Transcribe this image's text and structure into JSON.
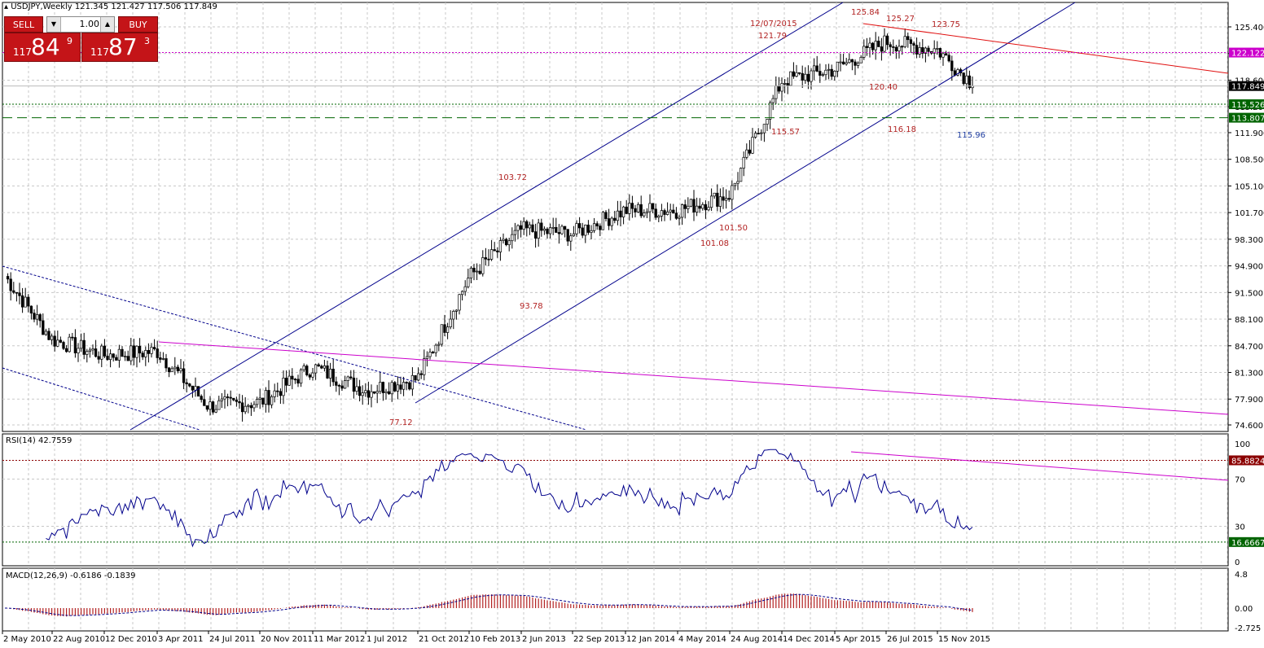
{
  "header": {
    "symbol_line": "USDJPY,Weekly  121.345 121.427 117.506 117.849"
  },
  "trade_panel": {
    "sell_label": "SELL",
    "buy_label": "BUY",
    "lot_value": "1.00",
    "sell_price": {
      "small": "117",
      "big": "84",
      "sup": "9"
    },
    "buy_price": {
      "small": "117",
      "big": "87",
      "sup": "3"
    }
  },
  "colors": {
    "bull": "#ffffff",
    "bear": "#000000",
    "channel": "#00008b",
    "magenta": "#cc00cc",
    "red_line": "#e01010",
    "green_line": "#006400",
    "rsi_line": "#00008b",
    "macd_hist": "#b22222",
    "annot": "#b22222",
    "annot_blue": "#1e3c9e",
    "grid": "#c8c8c8"
  },
  "price_axis": {
    "ticks": [
      "125.400",
      "122.000",
      "118.600",
      "115.200",
      "111.900",
      "108.500",
      "105.100",
      "101.700",
      "98.300",
      "94.900",
      "91.500",
      "88.100",
      "84.700",
      "81.300",
      "77.900",
      "74.600"
    ],
    "markers": [
      {
        "label": "122.122",
        "color": "#cc00cc"
      },
      {
        "label": "117.849",
        "color": "#000000"
      },
      {
        "label": "115.526",
        "color": "#006400"
      },
      {
        "label": "113.807",
        "color": "#006400"
      }
    ]
  },
  "time_axis": [
    "2 May 2010",
    "22 Aug 2010",
    "12 Dec 2010",
    "3 Apr 2011",
    "24 Jul 2011",
    "20 Nov 2011",
    "11 Mar 2012",
    "1 Jul 2012",
    "21 Oct 2012",
    "10 Feb 2013",
    "2 Jun 2013",
    "22 Sep 2013",
    "12 Jan 2014",
    "4 May 2014",
    "24 Aug 2014",
    "14 Dec 2014",
    "5 Apr 2015",
    "26 Jul 2015",
    "15 Nov 2015"
  ],
  "annotations": [
    {
      "text": "125.84"
    },
    {
      "text": "125.27"
    },
    {
      "text": "123.75"
    },
    {
      "text": "12/07/2015"
    },
    {
      "text": "121.79"
    },
    {
      "text": "120.40"
    },
    {
      "text": "115.57"
    },
    {
      "text": "116.18"
    },
    {
      "text": "115.96"
    },
    {
      "text": "103.72"
    },
    {
      "text": "101.50"
    },
    {
      "text": "101.08"
    },
    {
      "text": "93.78"
    },
    {
      "text": "77.12"
    }
  ],
  "rsi": {
    "label": "RSI(14) 42.7559",
    "axis": [
      "100",
      "70",
      "30",
      "0"
    ],
    "upper_level": "85.8824",
    "lower_level": "16.6667"
  },
  "macd": {
    "label": "MACD(12,26,9) -0.6186 -0.1839",
    "axis": [
      "4.8",
      "0.00",
      "-2.725"
    ]
  },
  "chart_data": {
    "type": "candlestick",
    "symbol": "USDJPY",
    "timeframe": "Weekly",
    "ohlc_last": {
      "open": 121.345,
      "high": 121.427,
      "low": 117.506,
      "close": 117.849
    },
    "ylim": [
      74.6,
      125.4
    ],
    "anchors": [
      {
        "x": "2 May 2010",
        "y": 94.0
      },
      {
        "x": "22 Aug 2010",
        "y": 85.5
      },
      {
        "x": "12 Dec 2010",
        "y": 83.5
      },
      {
        "x": "3 Apr 2011",
        "y": 84.0
      },
      {
        "x": "24 Jul 2011",
        "y": 77.0
      },
      {
        "x": "20 Nov 2011",
        "y": 77.5
      },
      {
        "x": "11 Mar 2012",
        "y": 82.0
      },
      {
        "x": "1 Jul 2012",
        "y": 79.0
      },
      {
        "x": "21 Oct 2012",
        "y": 80.5
      },
      {
        "x": "10 Feb 2013",
        "y": 93.5
      },
      {
        "x": "2 Jun 2013",
        "y": 99.5
      },
      {
        "x": "22 Sep 2013",
        "y": 99.0
      },
      {
        "x": "12 Jan 2014",
        "y": 102.0
      },
      {
        "x": "4 May 2014",
        "y": 102.0
      },
      {
        "x": "24 Aug 2014",
        "y": 104.0
      },
      {
        "x": "14 Dec 2014",
        "y": 118.5
      },
      {
        "x": "5 Apr 2015",
        "y": 120.0
      },
      {
        "x": "26 Jul 2015",
        "y": 123.5
      },
      {
        "x": "15 Nov 2015",
        "y": 122.5
      },
      {
        "x": "last",
        "y": 117.849
      }
    ],
    "support_resistance": [
      122.122,
      115.526,
      113.807
    ]
  }
}
